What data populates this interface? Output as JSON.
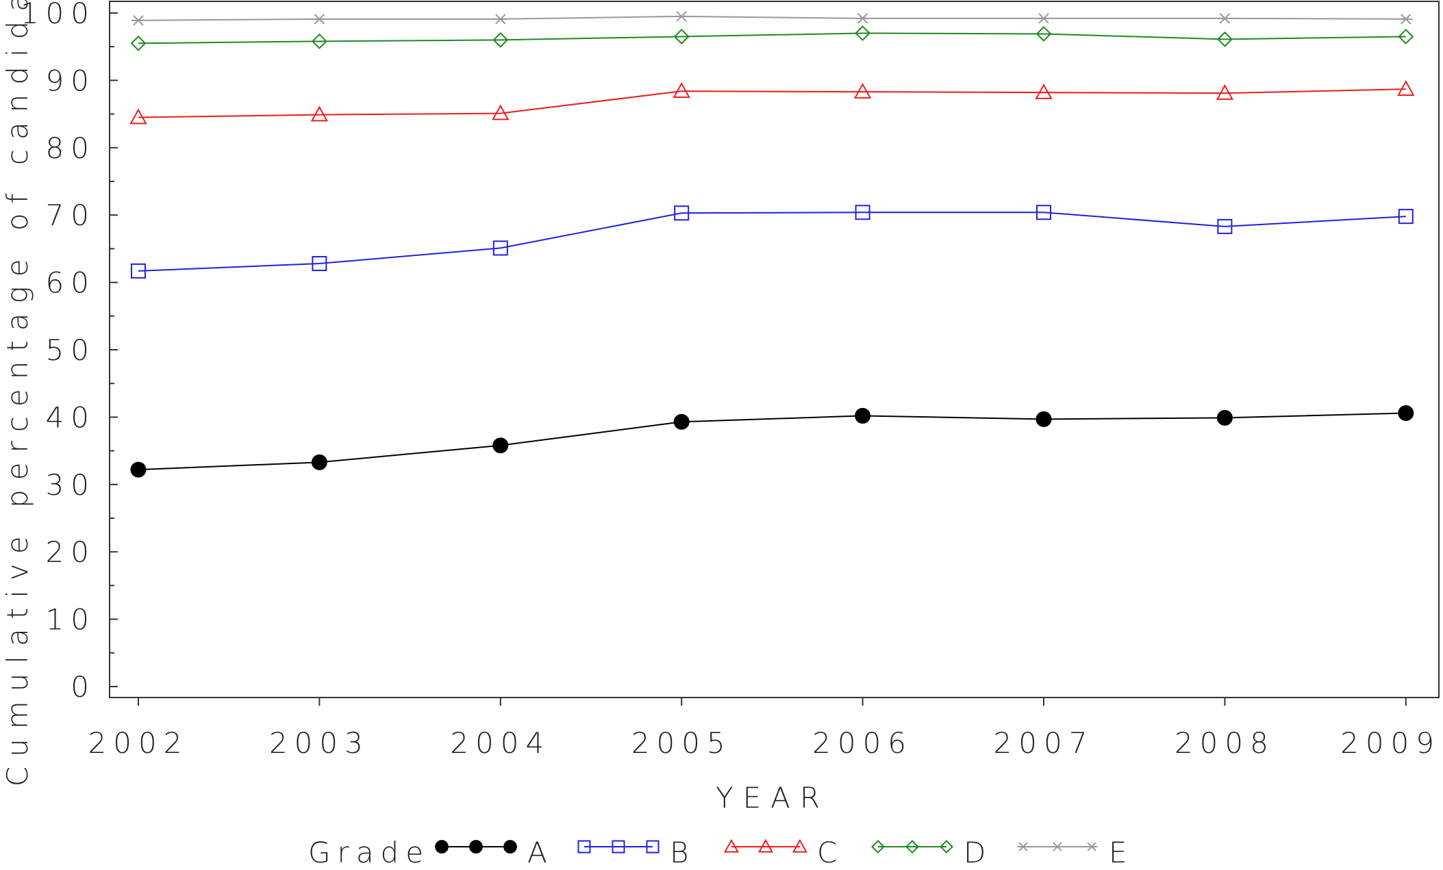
{
  "chart_data": {
    "type": "line",
    "xlabel": "YEAR",
    "ylabel": "Cumulative percentage of candidates",
    "x": [
      "2002",
      "2003",
      "2004",
      "2005",
      "2006",
      "2007",
      "2008",
      "2009"
    ],
    "ylim": [
      0,
      100
    ],
    "yticks": [
      "0",
      "10",
      "20",
      "30",
      "40",
      "50",
      "60",
      "70",
      "80",
      "90",
      "100"
    ],
    "legend_title": "Grade",
    "legend_position": "bottom",
    "grid": false,
    "series": [
      {
        "name": "A",
        "color": "#000000",
        "marker": "filled-circle",
        "values": [
          32.2,
          33.3,
          35.8,
          39.3,
          40.2,
          39.7,
          39.9,
          40.6
        ]
      },
      {
        "name": "B",
        "color": "#2020e0",
        "marker": "square",
        "values": [
          61.7,
          62.8,
          65.1,
          70.3,
          70.4,
          70.4,
          68.3,
          69.8
        ]
      },
      {
        "name": "C",
        "color": "#ee1c1c",
        "marker": "triangle",
        "values": [
          84.5,
          84.9,
          85.1,
          88.4,
          88.3,
          88.2,
          88.1,
          88.7
        ]
      },
      {
        "name": "D",
        "color": "#1f8a1f",
        "marker": "diamond",
        "values": [
          95.5,
          95.8,
          96.0,
          96.5,
          97.0,
          96.9,
          96.1,
          96.5
        ]
      },
      {
        "name": "E",
        "color": "#999999",
        "marker": "asterisk",
        "values": [
          98.9,
          99.1,
          99.1,
          99.5,
          99.2,
          99.2,
          99.2,
          99.1
        ]
      }
    ]
  }
}
